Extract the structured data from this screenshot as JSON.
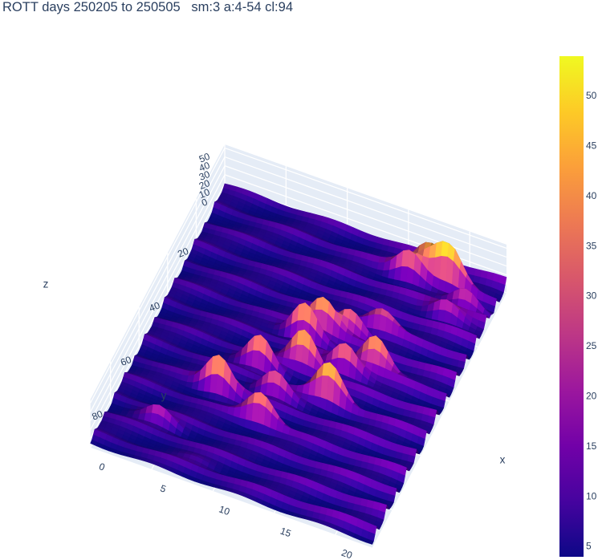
{
  "title": "ROTT days 250205 to 250505   sm:3 a:4-54 cl:94",
  "chart_data": {
    "type": "surface",
    "title": "ROTT days 250205 to 250505   sm:3 a:4-54 cl:94",
    "xlabel": "x",
    "ylabel": "y",
    "zlabel": "z",
    "xlim": [
      0,
      23
    ],
    "ylim": [
      0,
      94
    ],
    "zlim": [
      0,
      54
    ],
    "x_ticks": [
      0,
      5,
      10,
      15,
      20
    ],
    "y_ticks": [
      20,
      40,
      60,
      80
    ],
    "z_ticks": [
      0,
      10,
      20,
      30,
      40,
      50
    ],
    "colorscale": "plasma",
    "colorbar": {
      "range": [
        4,
        54
      ],
      "ticks": [
        5,
        10,
        15,
        20,
        25,
        30,
        35,
        40,
        45,
        50
      ]
    },
    "ridge_period_y": 7,
    "peaks": [
      {
        "x": 17,
        "y": 5,
        "z": 42
      },
      {
        "x": 19,
        "y": 6,
        "z": 50
      },
      {
        "x": 16,
        "y": 8,
        "z": 38
      },
      {
        "x": 21,
        "y": 11,
        "z": 32
      },
      {
        "x": 20,
        "y": 16,
        "z": 30
      },
      {
        "x": 16,
        "y": 27,
        "z": 30
      },
      {
        "x": 14,
        "y": 32,
        "z": 38
      },
      {
        "x": 12,
        "y": 34,
        "z": 45
      },
      {
        "x": 11,
        "y": 38,
        "z": 50
      },
      {
        "x": 17,
        "y": 40,
        "z": 48
      },
      {
        "x": 15,
        "y": 44,
        "z": 42
      },
      {
        "x": 12,
        "y": 47,
        "z": 50
      },
      {
        "x": 9,
        "y": 52,
        "z": 44
      },
      {
        "x": 15,
        "y": 55,
        "z": 48
      },
      {
        "x": 11,
        "y": 59,
        "z": 36
      },
      {
        "x": 7,
        "y": 64,
        "z": 48
      },
      {
        "x": 11,
        "y": 69,
        "z": 40
      },
      {
        "x": 4,
        "y": 80,
        "z": 26
      },
      {
        "x": 8,
        "y": 88,
        "z": 12
      }
    ]
  }
}
